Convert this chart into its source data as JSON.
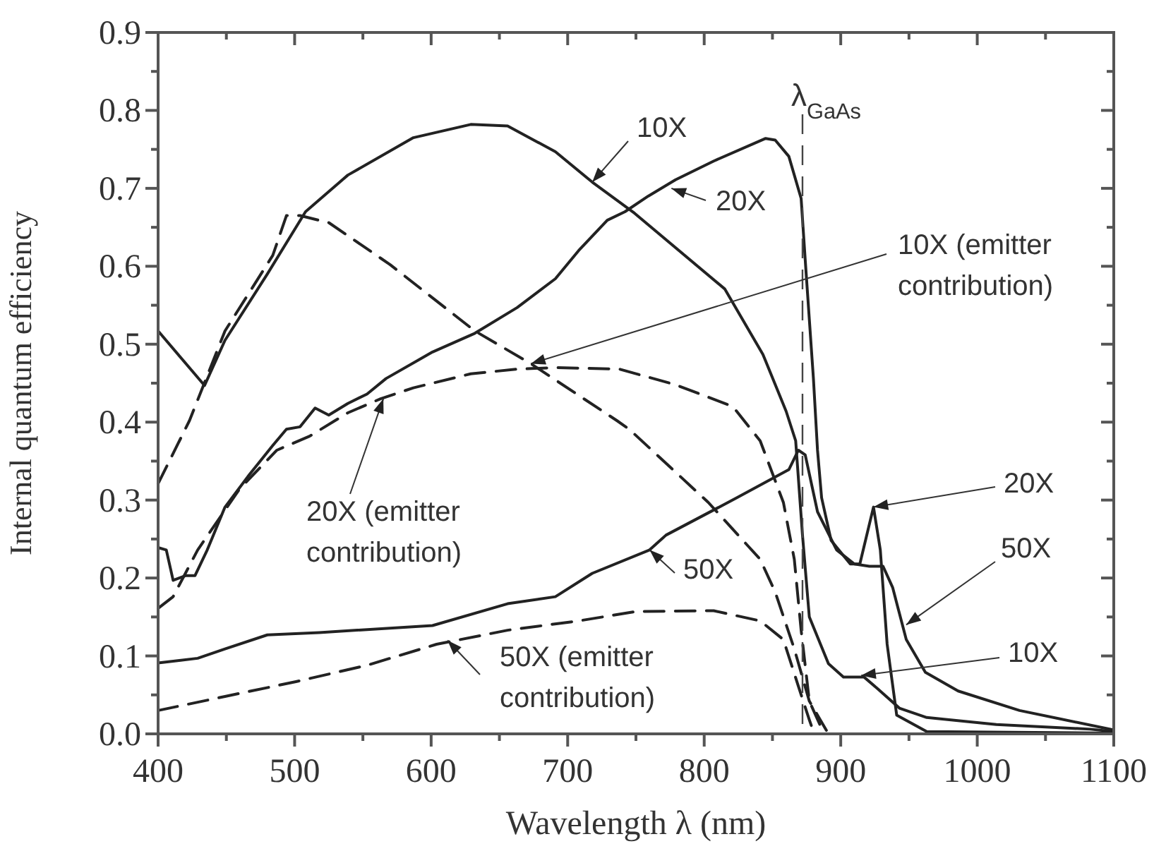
{
  "chart_data": {
    "type": "line",
    "xlabel": "Wavelength λ (nm)",
    "ylabel": "Internal quantum efficiency",
    "xlim": [
      400,
      1100
    ],
    "ylim": [
      0,
      0.9
    ],
    "xticks": [
      400,
      {
        "value": 450,
        "label": null
      },
      500,
      {
        "value": 550,
        "label": null
      },
      600,
      {
        "value": 650,
        "label": null
      },
      700,
      {
        "value": 750,
        "label": null
      },
      800,
      {
        "value": 850,
        "label": null
      },
      900,
      {
        "value": 950,
        "label": null
      },
      1000,
      {
        "value": 1050,
        "label": null
      },
      1100
    ],
    "yticks": [
      {
        "value": 0,
        "label": "0.0"
      },
      {
        "value": 0.05,
        "label": null
      },
      0.1,
      {
        "value": 0.15,
        "label": null
      },
      0.2,
      {
        "value": 0.25,
        "label": null
      },
      0.3,
      {
        "value": 0.35,
        "label": null
      },
      0.4,
      {
        "value": 0.45,
        "label": null
      },
      0.5,
      {
        "value": 0.55,
        "label": null
      },
      0.6,
      {
        "value": 0.65,
        "label": null
      },
      0.7,
      {
        "value": 0.75,
        "label": null
      },
      0.8,
      {
        "value": 0.85,
        "label": null
      },
      0.9
    ],
    "series": [
      {
        "color": "#222222",
        "line_style": "solid",
        "x": [
          400,
          434,
          449,
          480,
          508,
          539,
          587,
          629,
          656,
          691,
          718,
          749,
          815,
          843,
          860,
          867,
          872,
          877,
          891,
          902,
          917,
          927,
          943,
          963,
          1014,
          1083,
          1100
        ],
        "values": [
          0.517,
          0.447,
          0.505,
          0.59,
          0.67,
          0.717,
          0.765,
          0.782,
          0.78,
          0.747,
          0.708,
          0.668,
          0.571,
          0.487,
          0.414,
          0.376,
          0.255,
          0.15,
          0.09,
          0.073,
          0.073,
          0.058,
          0.033,
          0.021,
          0.012,
          0.006,
          0.003
        ]
      },
      {
        "color": "#222222",
        "line_style": "solid",
        "x": [
          400,
          406,
          411,
          420,
          427,
          436,
          449,
          467,
          484,
          494,
          504,
          515,
          525,
          539,
          553,
          567,
          601,
          632,
          663,
          691,
          708,
          729,
          742,
          759,
          779,
          807,
          845,
          852,
          862,
          871,
          874,
          880,
          883,
          886,
          893,
          907,
          914,
          924,
          929,
          934,
          941,
          963,
          1100
        ],
        "values": [
          0.239,
          0.236,
          0.197,
          0.203,
          0.203,
          0.236,
          0.291,
          0.333,
          0.37,
          0.391,
          0.394,
          0.418,
          0.409,
          0.424,
          0.436,
          0.456,
          0.49,
          0.514,
          0.547,
          0.584,
          0.62,
          0.659,
          0.67,
          0.69,
          0.711,
          0.735,
          0.764,
          0.762,
          0.741,
          0.687,
          0.608,
          0.456,
          0.364,
          0.303,
          0.248,
          0.218,
          0.218,
          0.291,
          0.236,
          0.115,
          0.024,
          0.003,
          0.001
        ]
      },
      {
        "color": "#222222",
        "line_style": "solid",
        "x": [
          400,
          429,
          449,
          480,
          518,
          601,
          656,
          691,
          718,
          760,
          772,
          824,
          862,
          869,
          874,
          883,
          897,
          910,
          921,
          931,
          938,
          948,
          962,
          986,
          1031,
          1100
        ],
        "values": [
          0.091,
          0.097,
          0.109,
          0.127,
          0.13,
          0.139,
          0.167,
          0.176,
          0.206,
          0.236,
          0.255,
          0.303,
          0.339,
          0.364,
          0.358,
          0.285,
          0.236,
          0.218,
          0.215,
          0.215,
          0.188,
          0.121,
          0.079,
          0.055,
          0.03,
          0.005
        ]
      },
      {
        "color": "#222222",
        "line_style": "dashed",
        "x": [
          400,
          423,
          449,
          484,
          494,
          504,
          525,
          570,
          632,
          673,
          736,
          745,
          803,
          841,
          852,
          866,
          877,
          890
        ],
        "values": [
          0.321,
          0.402,
          0.517,
          0.614,
          0.665,
          0.665,
          0.656,
          0.602,
          0.517,
          0.475,
          0.402,
          0.391,
          0.297,
          0.224,
          0.182,
          0.109,
          0.042,
          0.003
        ]
      },
      {
        "color": "#222222",
        "line_style": "dashed",
        "x": [
          400,
          411,
          429,
          460,
          487,
          511,
          539,
          563,
          587,
          629,
          663,
          691,
          738,
          779,
          821,
          841,
          858,
          866,
          871,
          877,
          887
        ],
        "values": [
          0.161,
          0.176,
          0.236,
          0.315,
          0.364,
          0.382,
          0.412,
          0.43,
          0.444,
          0.462,
          0.468,
          0.47,
          0.468,
          0.448,
          0.42,
          0.376,
          0.297,
          0.224,
          0.133,
          0.042,
          0.003
        ]
      },
      {
        "color": "#222222",
        "line_style": "dashed",
        "x": [
          400,
          449,
          501,
          553,
          604,
          656,
          708,
          750,
          807,
          841,
          858,
          869,
          877,
          880
        ],
        "values": [
          0.03,
          0.048,
          0.067,
          0.088,
          0.115,
          0.133,
          0.145,
          0.157,
          0.158,
          0.145,
          0.121,
          0.061,
          0.018,
          0.003
        ]
      }
    ],
    "ref_lines": [
      {
        "axis": "x",
        "value": 872,
        "label": "λ$_{GaAs}$",
        "line_style": "dashed"
      }
    ],
    "annotations": [
      {
        "text": "10X",
        "x": 718,
        "y": 0.708
      },
      {
        "text": "20X",
        "x": 776,
        "y": 0.7
      },
      {
        "text": "10X (emitter\ncontribution)",
        "x": 673,
        "y": 0.475
      },
      {
        "text": "20X (emitter\ncontribution)",
        "x": 565,
        "y": 0.43
      },
      {
        "text": "50X",
        "x": 760,
        "y": 0.236
      },
      {
        "text": "50X (emitter\ncontribution)",
        "x": 612,
        "y": 0.12
      },
      {
        "text": "20X",
        "x": 924,
        "y": 0.291
      },
      {
        "text": "50X",
        "x": 948,
        "y": 0.14
      },
      {
        "text": "10X",
        "x": 915,
        "y": 0.075
      }
    ]
  }
}
